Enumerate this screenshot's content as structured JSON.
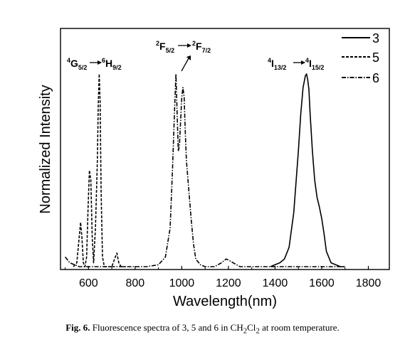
{
  "chart_data": {
    "type": "line",
    "xlabel": "Wavelength(nm)",
    "ylabel": "Normalized Intensity",
    "xlim": [
      480,
      1890
    ],
    "ylim": [
      0,
      1.1
    ],
    "x_ticks": [
      600,
      800,
      1000,
      1200,
      1400,
      1600,
      1800
    ],
    "y_ticks_shown": false,
    "grid": false,
    "legend_position": "top-right",
    "series": [
      {
        "name": "3",
        "line_style": "solid",
        "x": [
          1380,
          1400,
          1420,
          1440,
          1460,
          1480,
          1500,
          1510,
          1520,
          1530,
          1535,
          1540,
          1545,
          1550,
          1560,
          1570,
          1580,
          1590,
          1600,
          1610,
          1620,
          1640,
          1660,
          1680,
          1700
        ],
        "values": [
          0.0,
          0.01,
          0.02,
          0.04,
          0.1,
          0.28,
          0.6,
          0.79,
          0.93,
          0.99,
          1.0,
          0.97,
          0.92,
          0.8,
          0.6,
          0.45,
          0.36,
          0.31,
          0.25,
          0.17,
          0.08,
          0.02,
          0.01,
          0.0,
          0.0
        ]
      },
      {
        "name": "5",
        "line_style": "dashed",
        "x": [
          535,
          550,
          560,
          566,
          572,
          578,
          585,
          592,
          598,
          604,
          610,
          616,
          622,
          630,
          638,
          642,
          646,
          650,
          654,
          660,
          668,
          680,
          700,
          715,
          722,
          730,
          740,
          760
        ],
        "values": [
          0.0,
          0.02,
          0.15,
          0.23,
          0.15,
          0.02,
          0.0,
          0.05,
          0.3,
          0.5,
          0.45,
          0.15,
          0.02,
          0.2,
          0.55,
          0.85,
          1.0,
          0.85,
          0.4,
          0.05,
          0.0,
          0.0,
          0.0,
          0.05,
          0.07,
          0.02,
          0.0,
          0.0
        ]
      },
      {
        "name": "6",
        "line_style": "dash-dot",
        "x": [
          500,
          520,
          540,
          560,
          580,
          600,
          650,
          700,
          750,
          800,
          850,
          900,
          930,
          950,
          960,
          970,
          975,
          980,
          985,
          990,
          1000,
          1005,
          1010,
          1015,
          1020,
          1030,
          1040,
          1050,
          1060,
          1080,
          1100,
          1140,
          1170,
          1190,
          1200,
          1220,
          1250,
          1300,
          1350,
          1400,
          1500,
          1600,
          1700
        ],
        "values": [
          0.05,
          0.02,
          0.01,
          0.0,
          0.0,
          0.0,
          0.0,
          0.0,
          0.0,
          0.0,
          0.0,
          0.01,
          0.05,
          0.2,
          0.5,
          0.85,
          1.0,
          0.8,
          0.6,
          0.63,
          0.88,
          0.93,
          0.88,
          0.7,
          0.55,
          0.4,
          0.25,
          0.12,
          0.04,
          0.01,
          0.0,
          0.0,
          0.02,
          0.04,
          0.035,
          0.02,
          0.0,
          0.0,
          0.0,
          0.0,
          0.0,
          0.0,
          0.0
        ]
      }
    ],
    "annotations": [
      {
        "sup1": "4",
        "base1": "G",
        "sub1": "5/2",
        "sup2": "6",
        "base2": "H",
        "sub2": "9/2"
      },
      {
        "sup1": "2",
        "base1": "F",
        "sub1": "5/2",
        "sup2": "2",
        "base2": "F",
        "sub2": "7/2"
      },
      {
        "sup1": "4",
        "base1": "I",
        "sub1": "13/2",
        "sup2": "4",
        "base2": "I",
        "sub2": "15/2"
      }
    ]
  },
  "caption": {
    "label": "Fig. 6.",
    "text_before_formula": "Fluorescence spectra of 3, 5 and 6 in CH",
    "formula_sub1": "2",
    "formula_mid": "Cl",
    "formula_sub2": "2",
    "text_after_formula": " at room temperature."
  }
}
